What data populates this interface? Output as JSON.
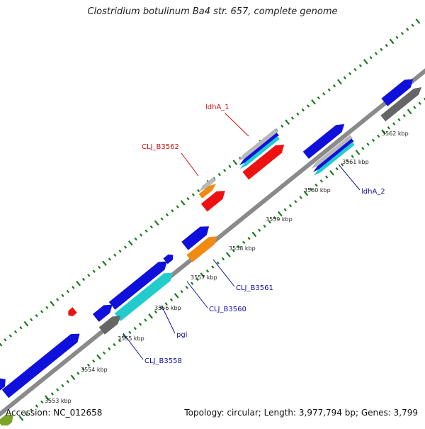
{
  "title": "Clostridium botulinum Ba4 str. 657, complete genome",
  "footer": {
    "accession": "Accession: NC_012658",
    "summary": "Topology: circular; Length: 3,977,794 bp; Genes: 3,799"
  },
  "colors": {
    "backbone": "#8a8a8a",
    "tick": "#1a7a1a",
    "gene_blue": "#1010dd",
    "gene_red": "#ee1111",
    "gene_orange": "#f08a10",
    "gene_cyan": "#22cccc",
    "gene_gray": "#666666",
    "gene_silver": "#b8b8b8",
    "label_red": "#cc1111",
    "label_blue": "#1111aa"
  },
  "ruler": [
    "3553 kbp",
    "3554 kbp",
    "3555 kbp",
    "3556 kbp",
    "3557 kbp",
    "3558 kbp",
    "3559 kbp",
    "3560 kbp",
    "3561 kbp",
    "3562 kbp"
  ],
  "gene_labels": [
    {
      "name": "ldhA_1",
      "color": "red"
    },
    {
      "name": "CLJ_B3562",
      "color": "red"
    },
    {
      "name": "ldhA_2",
      "color": "blue"
    },
    {
      "name": "CLJ_B3561",
      "color": "blue"
    },
    {
      "name": "CLJ_B3560",
      "color": "blue"
    },
    {
      "name": "pgi",
      "color": "blue"
    },
    {
      "name": "CLJ_B3558",
      "color": "blue"
    }
  ]
}
